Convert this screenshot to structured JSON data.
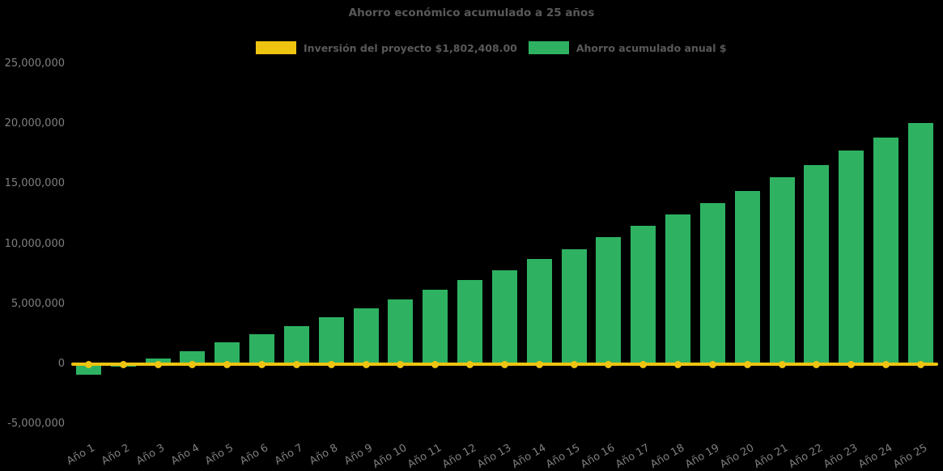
{
  "title": "Ahorro económico acumulado a 25 años",
  "legend": [
    {
      "label": "Inversión del proyecto $1,802,408.00",
      "color": "#EFC411"
    },
    {
      "label": "Ahorro acumulado anual $",
      "color": "#2EB262"
    }
  ],
  "chart_data": {
    "type": "bar",
    "title": "Ahorro económico acumulado a 25 años",
    "categories": [
      "Año 1",
      "Año 2",
      "Año 3",
      "Año 4",
      "Año 5",
      "Año 6",
      "Año 7",
      "Año 8",
      "Año 9",
      "Año 10",
      "Año 11",
      "Año 12",
      "Año 13",
      "Año 14",
      "Año 15",
      "Año 16",
      "Año 17",
      "Año 18",
      "Año 19",
      "Año 20",
      "Año 21",
      "Año 22",
      "Año 23",
      "Año 24",
      "Año 25"
    ],
    "series": [
      {
        "name": "Ahorro acumulado anual $",
        "type": "bar",
        "color": "#2EB262",
        "values": [
          -850000,
          -200000,
          500000,
          1100000,
          1800000,
          2500000,
          3200000,
          3900000,
          4650000,
          5400000,
          6200000,
          7000000,
          7800000,
          8750000,
          9600000,
          10600000,
          11500000,
          12450000,
          13400000,
          14400000,
          15550000,
          16550000,
          17800000,
          18900000,
          20100000
        ]
      },
      {
        "name": "Inversión del proyecto $1,802,408.00",
        "type": "line",
        "color": "#EFC411",
        "marker": "circle",
        "values": [
          0,
          0,
          0,
          0,
          0,
          0,
          0,
          0,
          0,
          0,
          0,
          0,
          0,
          0,
          0,
          0,
          0,
          0,
          0,
          0,
          0,
          0,
          0,
          0,
          0
        ]
      }
    ],
    "y_axis": {
      "min": -5000000,
      "max": 25000000,
      "step": 5000000,
      "tick_values": [
        25000000,
        20000000,
        15000000,
        10000000,
        5000000,
        0,
        -5000000
      ],
      "tick_labels": [
        "25,000,000",
        "20,000,000",
        "15,000,000",
        "10,000,000",
        "5,000,000",
        "0",
        "-5,000,000"
      ]
    },
    "xlabel": "",
    "ylabel": "",
    "legend_position": "top",
    "grid": false,
    "background_color": "#000000",
    "title_color": "#595959",
    "axis_text_color": "#7F7F7F"
  }
}
